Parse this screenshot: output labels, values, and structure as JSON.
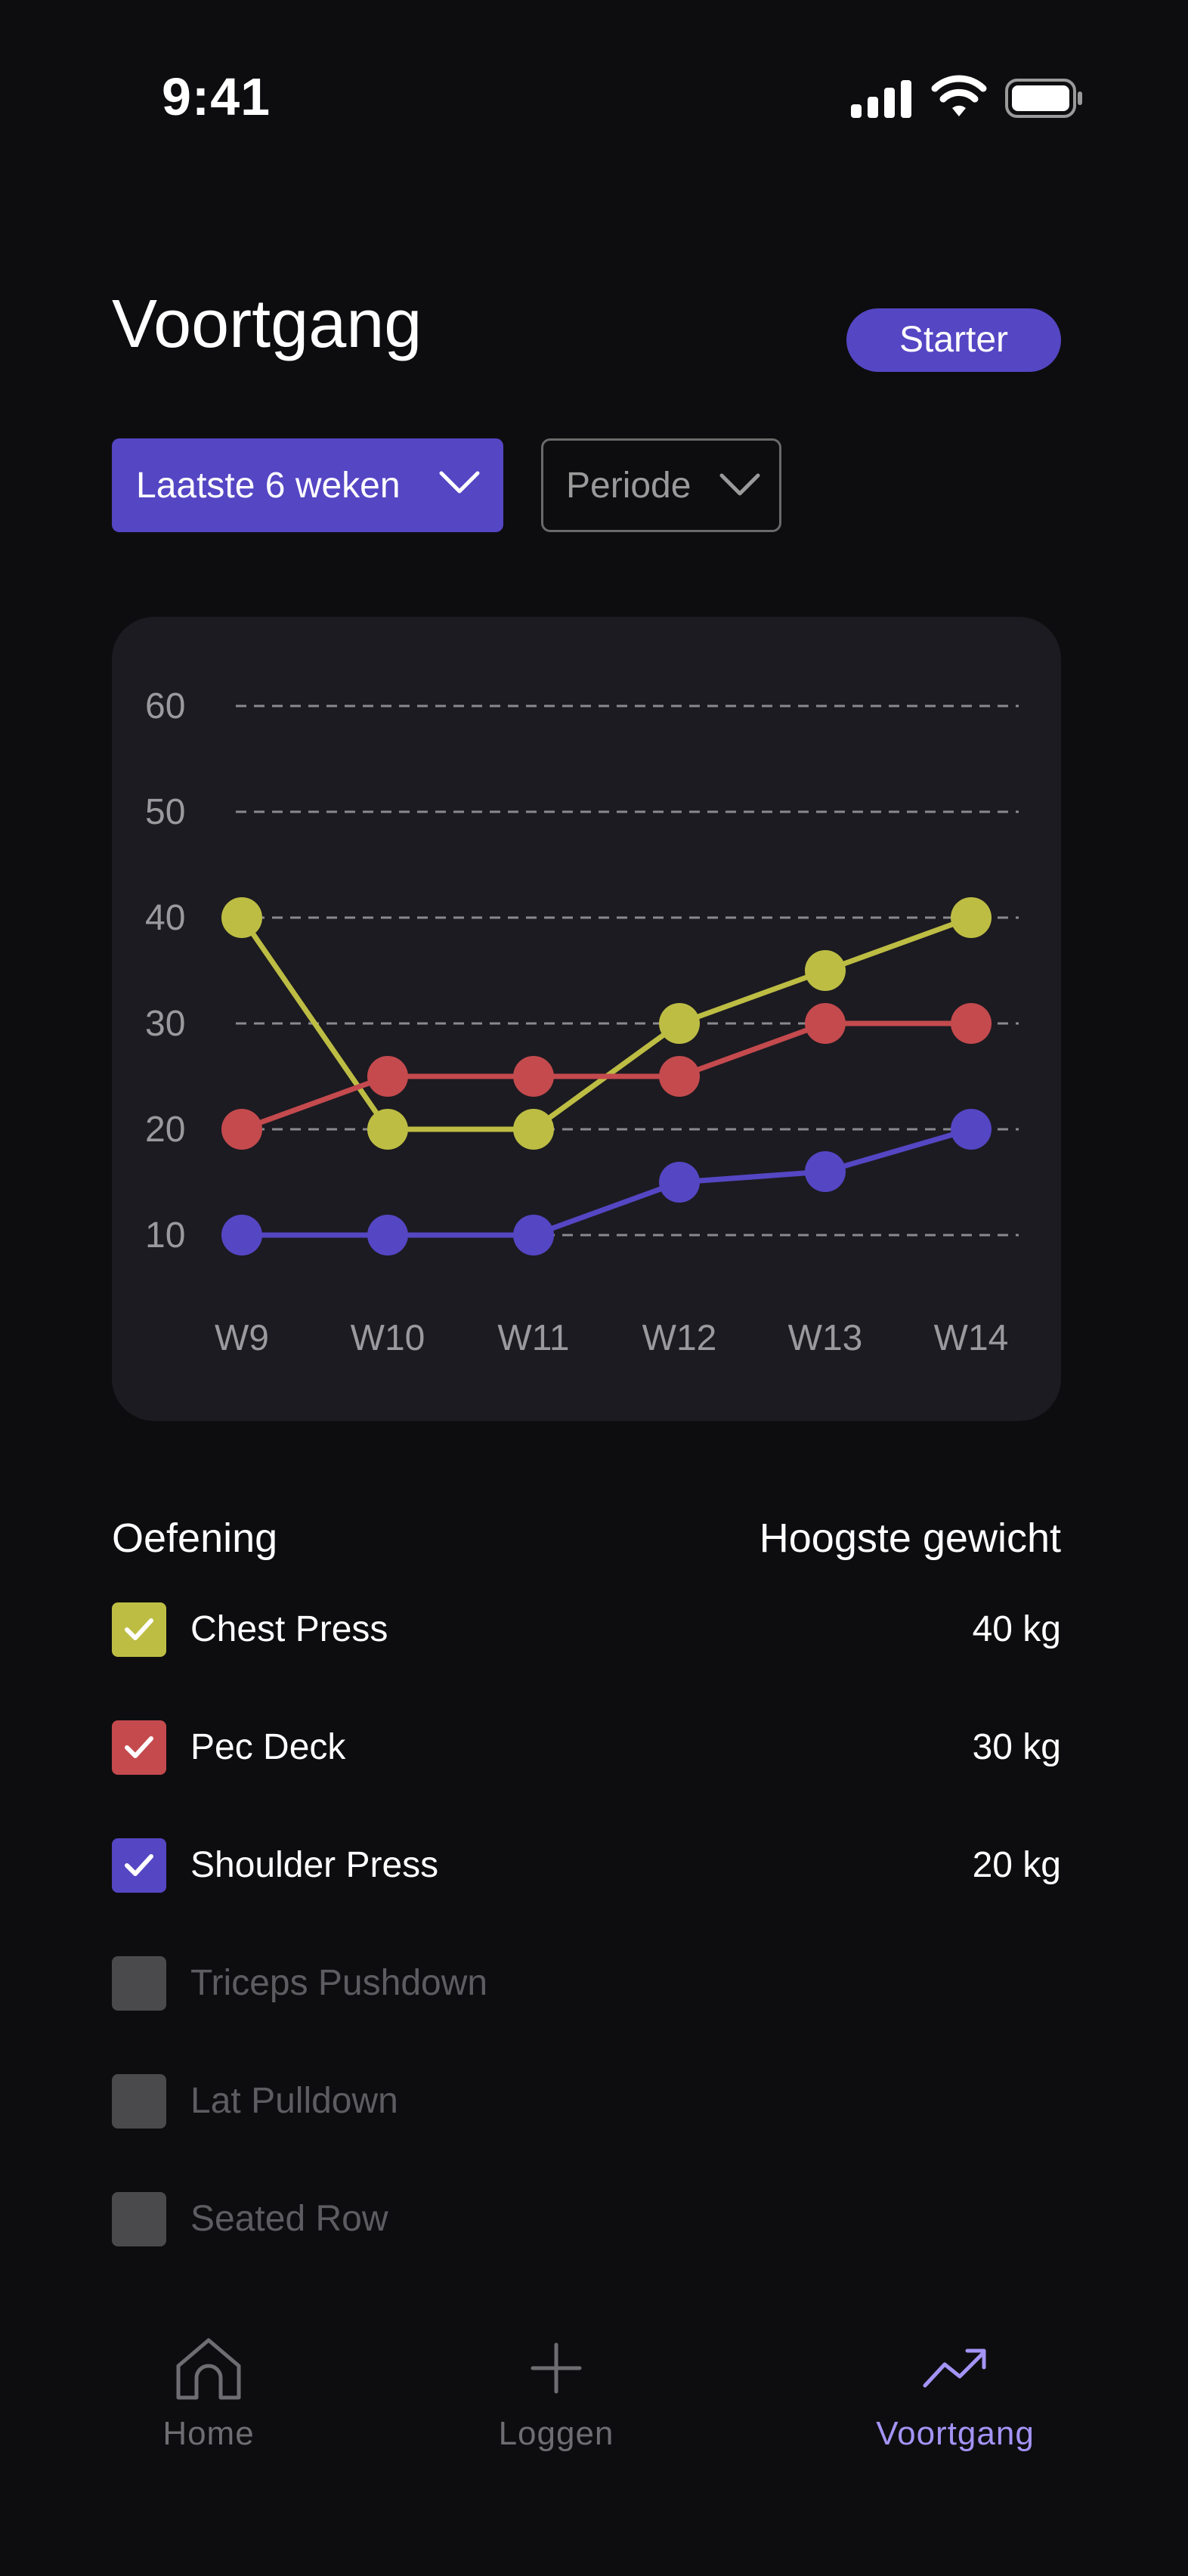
{
  "status_bar": {
    "time": "9:41"
  },
  "header": {
    "title": "Voortgang",
    "badge": "Starter"
  },
  "filters": {
    "range": "Laatste 6 weken",
    "period": "Periode"
  },
  "chart_data": {
    "type": "line",
    "categories": [
      "W9",
      "W10",
      "W11",
      "W12",
      "W13",
      "W14"
    ],
    "y_ticks": [
      60,
      50,
      40,
      30,
      20,
      10
    ],
    "ylim": [
      10,
      60
    ],
    "grid": true,
    "series": [
      {
        "name": "Chest Press",
        "color": "#bdbd44",
        "values": [
          40,
          20,
          20,
          30,
          35,
          40
        ]
      },
      {
        "name": "Pec Deck",
        "color": "#c44a4e",
        "values": [
          20,
          25,
          25,
          25,
          30,
          30
        ]
      },
      {
        "name": "Shoulder Press",
        "color": "#5546c4",
        "values": [
          10,
          10,
          10,
          15,
          16,
          20
        ]
      }
    ]
  },
  "list": {
    "header_left": "Oefening",
    "header_right": "Hoogste gewicht",
    "items": [
      {
        "label": "Chest Press",
        "value": "40 kg",
        "checked": true,
        "color": "#bdbd44"
      },
      {
        "label": "Pec Deck",
        "value": "30 kg",
        "checked": true,
        "color": "#c44a4e"
      },
      {
        "label": "Shoulder Press",
        "value": "20 kg",
        "checked": true,
        "color": "#5546c4"
      },
      {
        "label": "Triceps Pushdown",
        "value": "",
        "checked": false,
        "color": "#4a4a4c"
      },
      {
        "label": "Lat Pulldown",
        "value": "",
        "checked": false,
        "color": "#4a4a4c"
      },
      {
        "label": "Seated Row",
        "value": "",
        "checked": false,
        "color": "#4a4a4c"
      }
    ]
  },
  "nav": {
    "home": "Home",
    "log": "Loggen",
    "progress": "Voortgang"
  },
  "colors": {
    "accent": "#5546c4",
    "accent_light": "#a394f5",
    "muted": "#6e6e72"
  }
}
